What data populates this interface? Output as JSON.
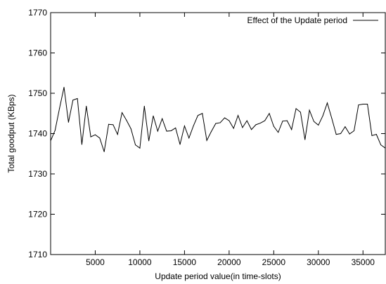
{
  "chart_data": {
    "type": "line",
    "title": "",
    "xlabel": "Update period value(in time-slots)",
    "ylabel": "Total goodput (KBps)",
    "xlim": [
      0,
      37500
    ],
    "ylim": [
      1710,
      1770
    ],
    "x_ticks": [
      5000,
      10000,
      15000,
      20000,
      25000,
      30000,
      35000
    ],
    "x_tick_labels": [
      "5000",
      "10000",
      "15000",
      "20000",
      "25000",
      "30000",
      "35000"
    ],
    "y_ticks": [
      1710,
      1720,
      1730,
      1740,
      1750,
      1760,
      1770
    ],
    "y_tick_labels": [
      "1710",
      "1720",
      "1730",
      "1740",
      "1750",
      "1760",
      "1770"
    ],
    "grid": false,
    "legend_position": "top-right",
    "series": [
      {
        "name": "Effect of the Update period",
        "color": "#000000",
        "x": [
          0,
          500,
          1000,
          1500,
          2000,
          2500,
          3000,
          3500,
          4000,
          4500,
          5000,
          5500,
          6000,
          6500,
          7000,
          7500,
          8000,
          8500,
          9000,
          9500,
          10000,
          10500,
          11000,
          11500,
          12000,
          12500,
          13000,
          13500,
          14000,
          14500,
          15000,
          15500,
          16000,
          16500,
          17000,
          17500,
          18000,
          18500,
          19000,
          19500,
          20000,
          20500,
          21000,
          21500,
          22000,
          22500,
          23000,
          23500,
          24000,
          24500,
          25000,
          25500,
          26000,
          26500,
          27000,
          27500,
          28000,
          28500,
          29000,
          29500,
          30000,
          30500,
          31000,
          31500,
          32000,
          32500,
          33000,
          33500,
          34000,
          34500,
          35000,
          35500,
          36000,
          36500,
          37000,
          37500
        ],
        "y": [
          1738.2,
          1740.8,
          1746.3,
          1751.5,
          1742.8,
          1748.3,
          1748.7,
          1737.3,
          1746.8,
          1739.2,
          1739.7,
          1738.9,
          1735.5,
          1742.3,
          1742.2,
          1739.8,
          1745.2,
          1743.3,
          1741.2,
          1737.2,
          1736.4,
          1746.8,
          1738.2,
          1744.4,
          1740.6,
          1743.7,
          1740.6,
          1740.7,
          1741.4,
          1737.3,
          1741.9,
          1738.9,
          1741.9,
          1744.5,
          1745.0,
          1738.3,
          1740.5,
          1742.5,
          1742.7,
          1743.9,
          1743.2,
          1741.3,
          1744.5,
          1741.5,
          1743.2,
          1741.0,
          1742.2,
          1742.6,
          1743.2,
          1745.0,
          1741.8,
          1740.3,
          1743.1,
          1743.2,
          1741.0,
          1746.2,
          1745.3,
          1738.5,
          1745.8,
          1743.0,
          1742.1,
          1744.4,
          1747.6,
          1743.8,
          1739.8,
          1740.0,
          1741.7,
          1739.9,
          1740.7,
          1747.1,
          1747.3,
          1747.3,
          1739.5,
          1739.8,
          1737.2,
          1736.4
        ]
      }
    ]
  }
}
